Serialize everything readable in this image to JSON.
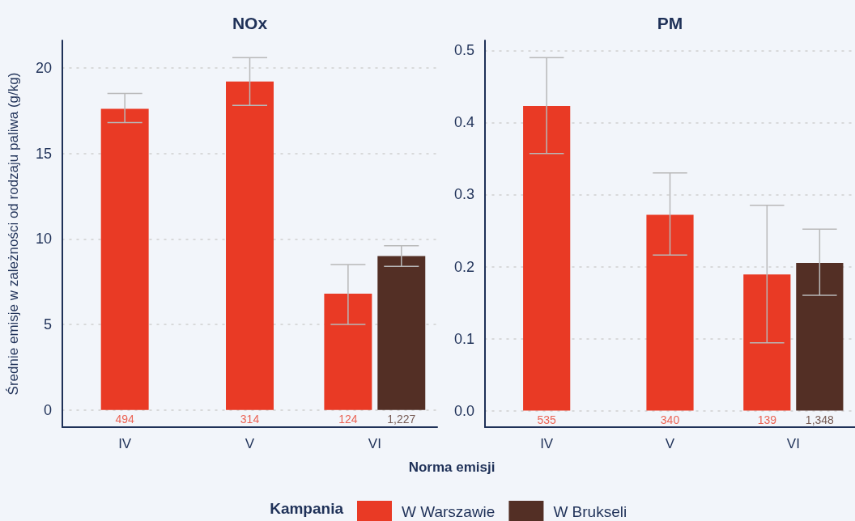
{
  "chart_data": [
    {
      "type": "bar",
      "title": "NOx",
      "ylabel": "Średnie emisje w zależności od rodzaju paliwa (g/kg)",
      "xlabel": "Norma emisji",
      "legend_title": "Kampania",
      "legend": "bottom",
      "grid": "y",
      "categories": [
        "IV",
        "V",
        "VI"
      ],
      "ylim": [
        -1,
        21.6
      ],
      "yticks": [
        0,
        5,
        10,
        15,
        20
      ],
      "series": [
        {
          "name": "W Warszawie",
          "color": "#e93a25",
          "values": [
            17.6,
            19.2,
            6.8
          ],
          "errors": [
            [
              16.8,
              18.5
            ],
            [
              17.8,
              20.6
            ],
            [
              5.0,
              8.5
            ]
          ]
        },
        {
          "name": "W Brukseli",
          "color": "#532f25",
          "values": [
            null,
            null,
            9.0
          ],
          "errors": [
            null,
            null,
            [
              8.4,
              9.6
            ]
          ]
        }
      ],
      "annotations": [
        {
          "text": "494",
          "x": "IV",
          "y": 0
        },
        {
          "text": "314",
          "x": "V",
          "y": 0
        },
        {
          "text": "124",
          "x": "VI",
          "y": 0
        },
        {
          "text": "1,227",
          "x": "VI",
          "y": 0
        }
      ]
    },
    {
      "type": "bar",
      "title": "PM",
      "grid": "y",
      "categories": [
        "IV",
        "V",
        "VI"
      ],
      "ylim": [
        -0.023,
        0.514
      ],
      "yticks": [
        {
          "value": 0,
          "label": "0.0"
        },
        0.1,
        0.2,
        0.3,
        0.4,
        0.5
      ],
      "series": [
        {
          "name": "W Warszawie",
          "color": "#e93a25",
          "values": [
            0.423,
            0.272,
            0.189
          ],
          "errors": [
            [
              0.357,
              0.49
            ],
            [
              0.216,
              0.33
            ],
            [
              0.094,
              0.285
            ]
          ]
        },
        {
          "name": "W Brukseli",
          "color": "#532f25",
          "values": [
            null,
            null,
            0.205
          ],
          "errors": [
            null,
            null,
            [
              0.16,
              0.252
            ]
          ]
        }
      ],
      "annotations": [
        {
          "text": "535",
          "x": "IV",
          "y": 0
        },
        {
          "text": "340",
          "x": "V",
          "y": 0
        },
        {
          "text": "139",
          "x": "VI",
          "y": 0
        },
        {
          "text": "1,348",
          "x": "VI",
          "y": 0
        }
      ]
    }
  ]
}
